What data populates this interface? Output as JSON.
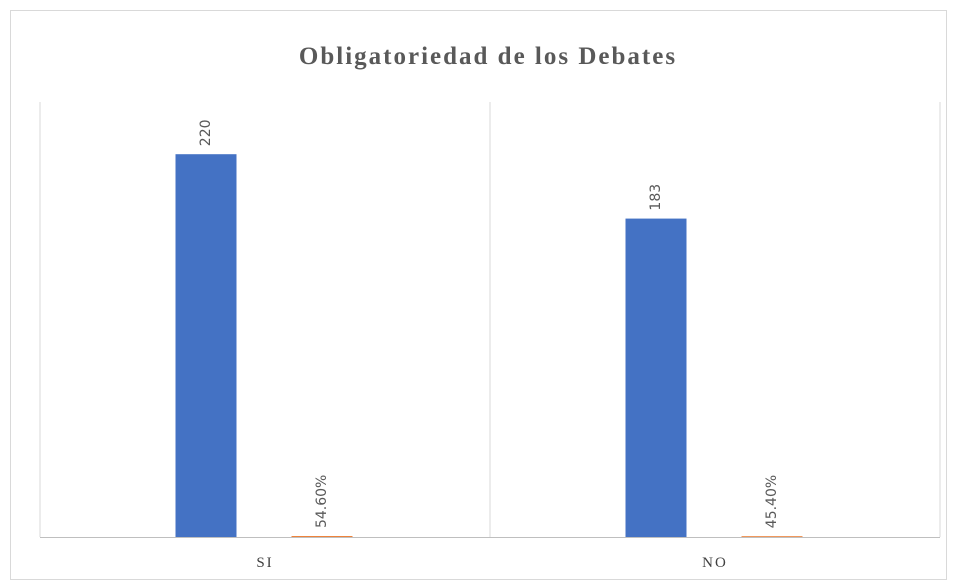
{
  "chart_data": {
    "type": "bar",
    "title": "Obligatoriedad de los Debates",
    "categories": [
      "SI",
      "NO"
    ],
    "series": [
      {
        "color": "#4472c4",
        "values": [
          220,
          183
        ]
      },
      {
        "color": "#ed7d31",
        "values": [
          0.546,
          0.454
        ],
        "value_labels": [
          "54.60%",
          "45.40%"
        ]
      }
    ],
    "ylim": [
      0,
      250
    ]
  }
}
